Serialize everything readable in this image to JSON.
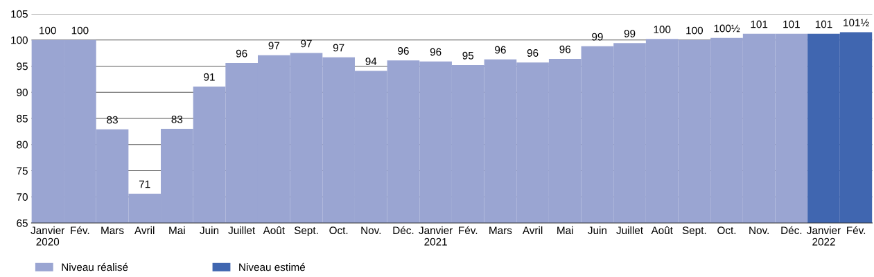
{
  "chart_data": {
    "type": "bar",
    "categories": [
      "Janvier\n2020",
      "Fév.",
      "Mars",
      "Avril",
      "Mai",
      "Juin",
      "Juillet",
      "Août",
      "Sept.",
      "Oct.",
      "Nov.",
      "Déc.",
      "Janvier\n2021",
      "Fév.",
      "Mars",
      "Avril",
      "Mai",
      "Juin",
      "Juillet",
      "Août",
      "Sept.",
      "Oct.",
      "Nov.",
      "Déc.",
      "Janvier\n2022",
      "Fév."
    ],
    "series": [
      {
        "name": "Niveau réalisé",
        "color": "#9aa5d2",
        "values": [
          100.0,
          100.0,
          82.9,
          70.6,
          83.0,
          91.1,
          95.6,
          97.1,
          97.5,
          96.7,
          94.1,
          96.1,
          95.9,
          95.2,
          96.3,
          95.7,
          96.4,
          98.8,
          99.4,
          100.2,
          100.0,
          100.4,
          101.2,
          101.2,
          null,
          null
        ],
        "value_labels": [
          "100",
          "100",
          "83",
          "71",
          "83",
          "91",
          "96",
          "97",
          "97",
          "97",
          "94",
          "96",
          "96",
          "95",
          "96",
          "96",
          "96",
          "99",
          "99",
          "100",
          "100",
          "100½",
          "101",
          "101",
          null,
          null
        ]
      },
      {
        "name": "Niveau estimé",
        "color": "#4066b0",
        "values": [
          null,
          null,
          null,
          null,
          null,
          null,
          null,
          null,
          null,
          null,
          null,
          null,
          null,
          null,
          null,
          null,
          null,
          null,
          null,
          null,
          null,
          null,
          null,
          null,
          101.2,
          101.5
        ],
        "value_labels": [
          null,
          null,
          null,
          null,
          null,
          null,
          null,
          null,
          null,
          null,
          null,
          null,
          null,
          null,
          null,
          null,
          null,
          null,
          null,
          null,
          null,
          null,
          null,
          null,
          "101",
          "101½"
        ]
      }
    ],
    "ylim": [
      65,
      105
    ],
    "yticks": [
      65,
      70,
      75,
      80,
      85,
      90,
      95,
      100,
      105
    ],
    "grid": "y",
    "legend": "bottom left"
  }
}
